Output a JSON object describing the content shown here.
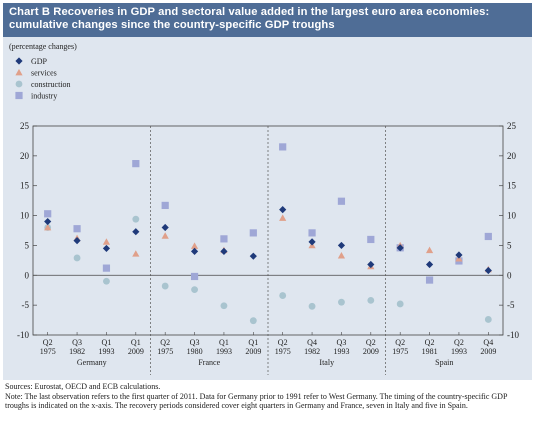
{
  "chart_data": {
    "type": "scatter",
    "title": "Chart B Recoveries in GDP and sectoral value added in the largest euro area economies: cumulative changes since the country-specific GDP troughs",
    "title_line1": "Chart B Recoveries in GDP and sectoral value added in the largest euro area economies:",
    "title_line2": "cumulative changes since the country-specific GDP troughs",
    "unit": "(percentage changes)",
    "ylim": [
      -10,
      25
    ],
    "yticks": [
      -10,
      -5,
      0,
      5,
      10,
      15,
      20,
      25
    ],
    "legend_placement": "top-left",
    "grid": false,
    "groups": [
      {
        "country": "Germany",
        "start": 0,
        "count": 4
      },
      {
        "country": "France",
        "start": 4,
        "count": 4
      },
      {
        "country": "Italy",
        "start": 8,
        "count": 4
      },
      {
        "country": "Spain",
        "start": 12,
        "count": 4
      }
    ],
    "categories": [
      {
        "quarter": "Q2",
        "year": "1975"
      },
      {
        "quarter": "Q3",
        "year": "1982"
      },
      {
        "quarter": "Q1",
        "year": "1993"
      },
      {
        "quarter": "Q1",
        "year": "2009"
      },
      {
        "quarter": "Q2",
        "year": "1975"
      },
      {
        "quarter": "Q3",
        "year": "1980"
      },
      {
        "quarter": "Q1",
        "year": "1993"
      },
      {
        "quarter": "Q1",
        "year": "2009"
      },
      {
        "quarter": "Q2",
        "year": "1975"
      },
      {
        "quarter": "Q4",
        "year": "1982"
      },
      {
        "quarter": "Q3",
        "year": "1993"
      },
      {
        "quarter": "Q2",
        "year": "2009"
      },
      {
        "quarter": "Q2",
        "year": "1975"
      },
      {
        "quarter": "Q2",
        "year": "1981"
      },
      {
        "quarter": "Q2",
        "year": "1993"
      },
      {
        "quarter": "Q4",
        "year": "2009"
      }
    ],
    "series": [
      {
        "name": "GDP",
        "marker": "diamond",
        "color": "#1f3a7a",
        "values": [
          9.0,
          5.8,
          4.5,
          7.3,
          8.0,
          4.0,
          4.0,
          3.2,
          11.0,
          5.6,
          5.0,
          1.8,
          4.6,
          1.8,
          3.4,
          0.8
        ]
      },
      {
        "name": "services",
        "marker": "triangle",
        "color": "#e0a08a",
        "values": [
          8.0,
          6.2,
          5.6,
          3.6,
          6.6,
          4.9,
          4.2,
          null,
          9.6,
          5.0,
          3.3,
          1.5,
          5.0,
          4.2,
          2.8,
          1.0
        ]
      },
      {
        "name": "construction",
        "marker": "circle",
        "color": "#a9c4cf",
        "values": [
          8.0,
          2.9,
          -1.0,
          9.4,
          -1.8,
          -2.4,
          -5.1,
          -7.6,
          -3.4,
          -5.2,
          -4.5,
          -4.2,
          -4.8,
          null,
          null,
          -7.4
        ]
      },
      {
        "name": "industry",
        "marker": "square",
        "color": "#9fa7d6",
        "values": [
          10.3,
          7.8,
          1.2,
          18.7,
          11.7,
          -0.2,
          6.1,
          7.1,
          21.5,
          7.1,
          12.4,
          6.0,
          4.6,
          -0.8,
          2.4,
          6.5
        ]
      }
    ]
  },
  "notes": {
    "sources": "Sources: Eurostat, OECD and ECB calculations.",
    "note": "Note: The last observation refers to the first quarter of 2011. Data for Germany prior to 1991 refer to West Germany. The timing of the country-specific GDP troughs is indicated on the x-axis. The recovery periods considered cover eight quarters in Germany and France, seven in Italy and five in Spain."
  }
}
